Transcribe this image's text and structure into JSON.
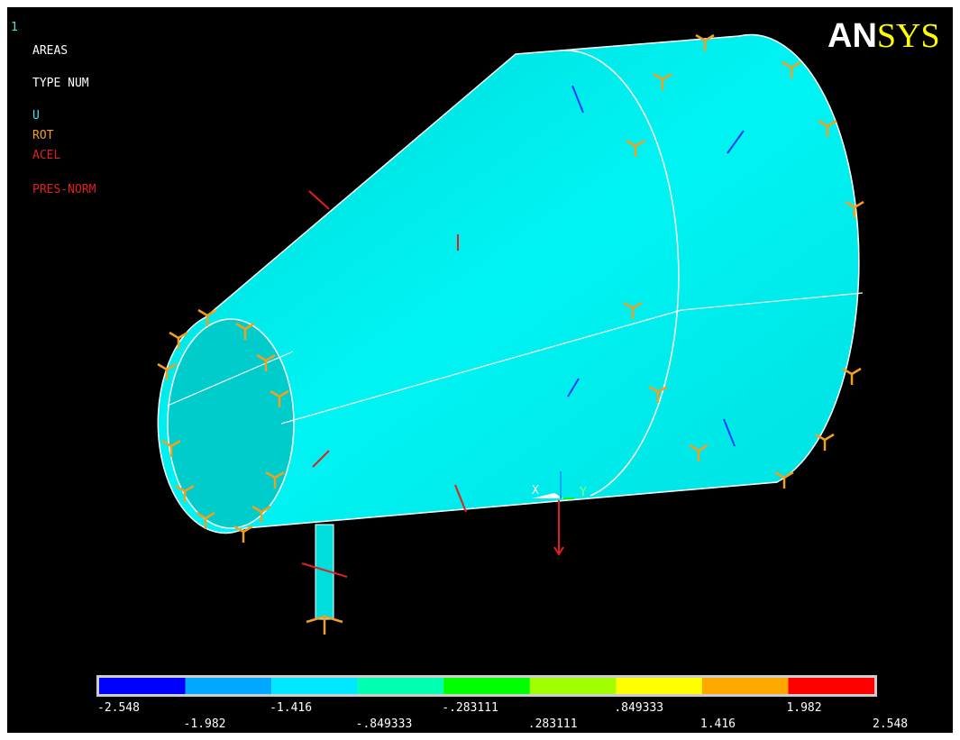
{
  "viewport": {
    "window_number": "1",
    "labels": [
      "AREAS",
      "TYPE NUM"
    ],
    "legend": [
      {
        "text": "U",
        "color": "#4fe0e0"
      },
      {
        "text": "ROT",
        "color": "#f0a020"
      },
      {
        "text": "ACEL",
        "color": "#e02020"
      },
      {
        "text": "PRES-NORM",
        "color": "#e02020"
      }
    ],
    "logo": [
      "AN",
      "SYS"
    ],
    "triad": [
      "X",
      "Y"
    ]
  },
  "contour_bar": {
    "colors": [
      "#0000ff",
      "#00a8ff",
      "#00e8ff",
      "#00ffb0",
      "#00ff00",
      "#a0ff00",
      "#ffff00",
      "#ffa800",
      "#ff0000"
    ],
    "labels": [
      "-2.548",
      "-1.982",
      "-1.416",
      "-.849333",
      "-.283111",
      ".283111",
      ".849333",
      "1.416",
      "1.982",
      "2.548"
    ]
  }
}
